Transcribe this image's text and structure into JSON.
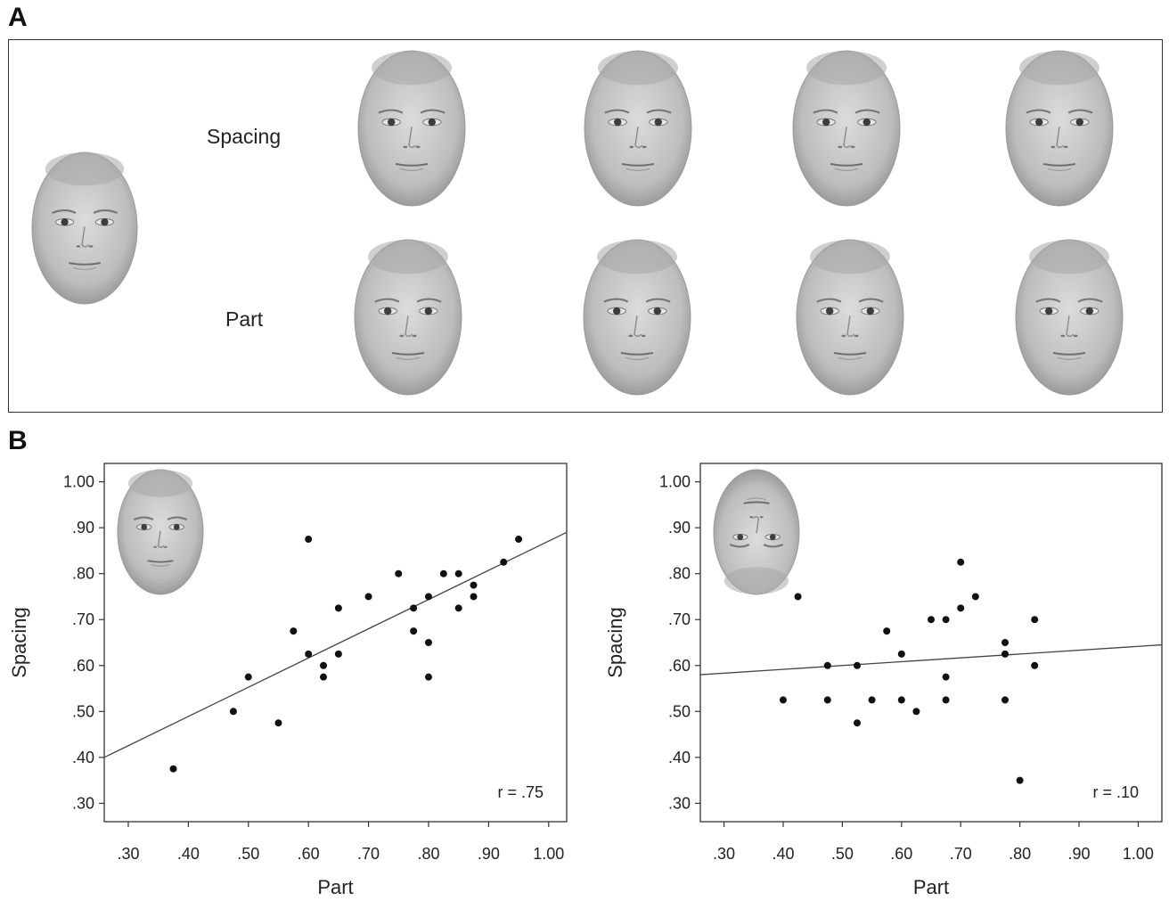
{
  "panels": {
    "a_label": "A",
    "b_label": "B"
  },
  "panel_a": {
    "row_labels": [
      "Spacing",
      "Part"
    ]
  },
  "colors": {
    "points": "#111111",
    "line": "#444444",
    "frame": "#333333",
    "face_skin": "#c9c9c9",
    "face_dark": "#7a7a7a"
  },
  "chart_data": [
    {
      "type": "scatter",
      "name": "upright",
      "inset": "upright-face",
      "xlabel": "Part",
      "ylabel": "Spacing",
      "xlim": [
        0.26,
        1.03
      ],
      "ylim": [
        0.26,
        1.04
      ],
      "xticks": [
        0.3,
        0.4,
        0.5,
        0.6,
        0.7,
        0.8,
        0.9,
        1.0
      ],
      "xtick_labels": [
        ".30",
        ".40",
        ".50",
        ".60",
        ".70",
        ".80",
        ".90",
        "1.00"
      ],
      "yticks": [
        0.3,
        0.4,
        0.5,
        0.6,
        0.7,
        0.8,
        0.9,
        1.0
      ],
      "ytick_labels": [
        ".30",
        ".40",
        ".50",
        ".60",
        ".70",
        ".80",
        ".90",
        "1.00"
      ],
      "annotation": "r = .75",
      "fit_line": {
        "x": [
          0.26,
          1.03
        ],
        "y": [
          0.4,
          0.89
        ]
      },
      "points": [
        [
          0.375,
          0.375
        ],
        [
          0.475,
          0.5
        ],
        [
          0.5,
          0.575
        ],
        [
          0.55,
          0.475
        ],
        [
          0.575,
          0.675
        ],
        [
          0.6,
          0.875
        ],
        [
          0.6,
          0.625
        ],
        [
          0.625,
          0.6
        ],
        [
          0.625,
          0.575
        ],
        [
          0.65,
          0.725
        ],
        [
          0.65,
          0.625
        ],
        [
          0.7,
          0.75
        ],
        [
          0.75,
          0.8
        ],
        [
          0.775,
          0.725
        ],
        [
          0.775,
          0.675
        ],
        [
          0.8,
          0.75
        ],
        [
          0.8,
          0.65
        ],
        [
          0.8,
          0.575
        ],
        [
          0.825,
          0.8
        ],
        [
          0.85,
          0.8
        ],
        [
          0.85,
          0.725
        ],
        [
          0.875,
          0.775
        ],
        [
          0.875,
          0.75
        ],
        [
          0.925,
          0.825
        ],
        [
          0.95,
          0.875
        ]
      ]
    },
    {
      "type": "scatter",
      "name": "inverted",
      "inset": "inverted-face",
      "xlabel": "Part",
      "ylabel": "Spacing",
      "xlim": [
        0.26,
        1.04
      ],
      "ylim": [
        0.26,
        1.04
      ],
      "xticks": [
        0.3,
        0.4,
        0.5,
        0.6,
        0.7,
        0.8,
        0.9,
        1.0
      ],
      "xtick_labels": [
        ".30",
        ".40",
        ".50",
        ".60",
        ".70",
        ".80",
        ".90",
        "1.00"
      ],
      "yticks": [
        0.3,
        0.4,
        0.5,
        0.6,
        0.7,
        0.8,
        0.9,
        1.0
      ],
      "ytick_labels": [
        ".30",
        ".40",
        ".50",
        ".60",
        ".70",
        ".80",
        ".90",
        "1.00"
      ],
      "annotation": "r = .10",
      "fit_line": {
        "x": [
          0.26,
          1.04
        ],
        "y": [
          0.58,
          0.645
        ]
      },
      "points": [
        [
          0.4,
          0.525
        ],
        [
          0.425,
          0.75
        ],
        [
          0.475,
          0.6
        ],
        [
          0.475,
          0.525
        ],
        [
          0.525,
          0.6
        ],
        [
          0.525,
          0.475
        ],
        [
          0.55,
          0.525
        ],
        [
          0.575,
          0.675
        ],
        [
          0.6,
          0.625
        ],
        [
          0.6,
          0.525
        ],
        [
          0.625,
          0.5
        ],
        [
          0.65,
          0.7
        ],
        [
          0.675,
          0.7
        ],
        [
          0.675,
          0.575
        ],
        [
          0.675,
          0.525
        ],
        [
          0.7,
          0.825
        ],
        [
          0.7,
          0.725
        ],
        [
          0.725,
          0.75
        ],
        [
          0.775,
          0.65
        ],
        [
          0.775,
          0.625
        ],
        [
          0.775,
          0.525
        ],
        [
          0.8,
          0.35
        ],
        [
          0.825,
          0.7
        ],
        [
          0.825,
          0.6
        ]
      ]
    }
  ]
}
